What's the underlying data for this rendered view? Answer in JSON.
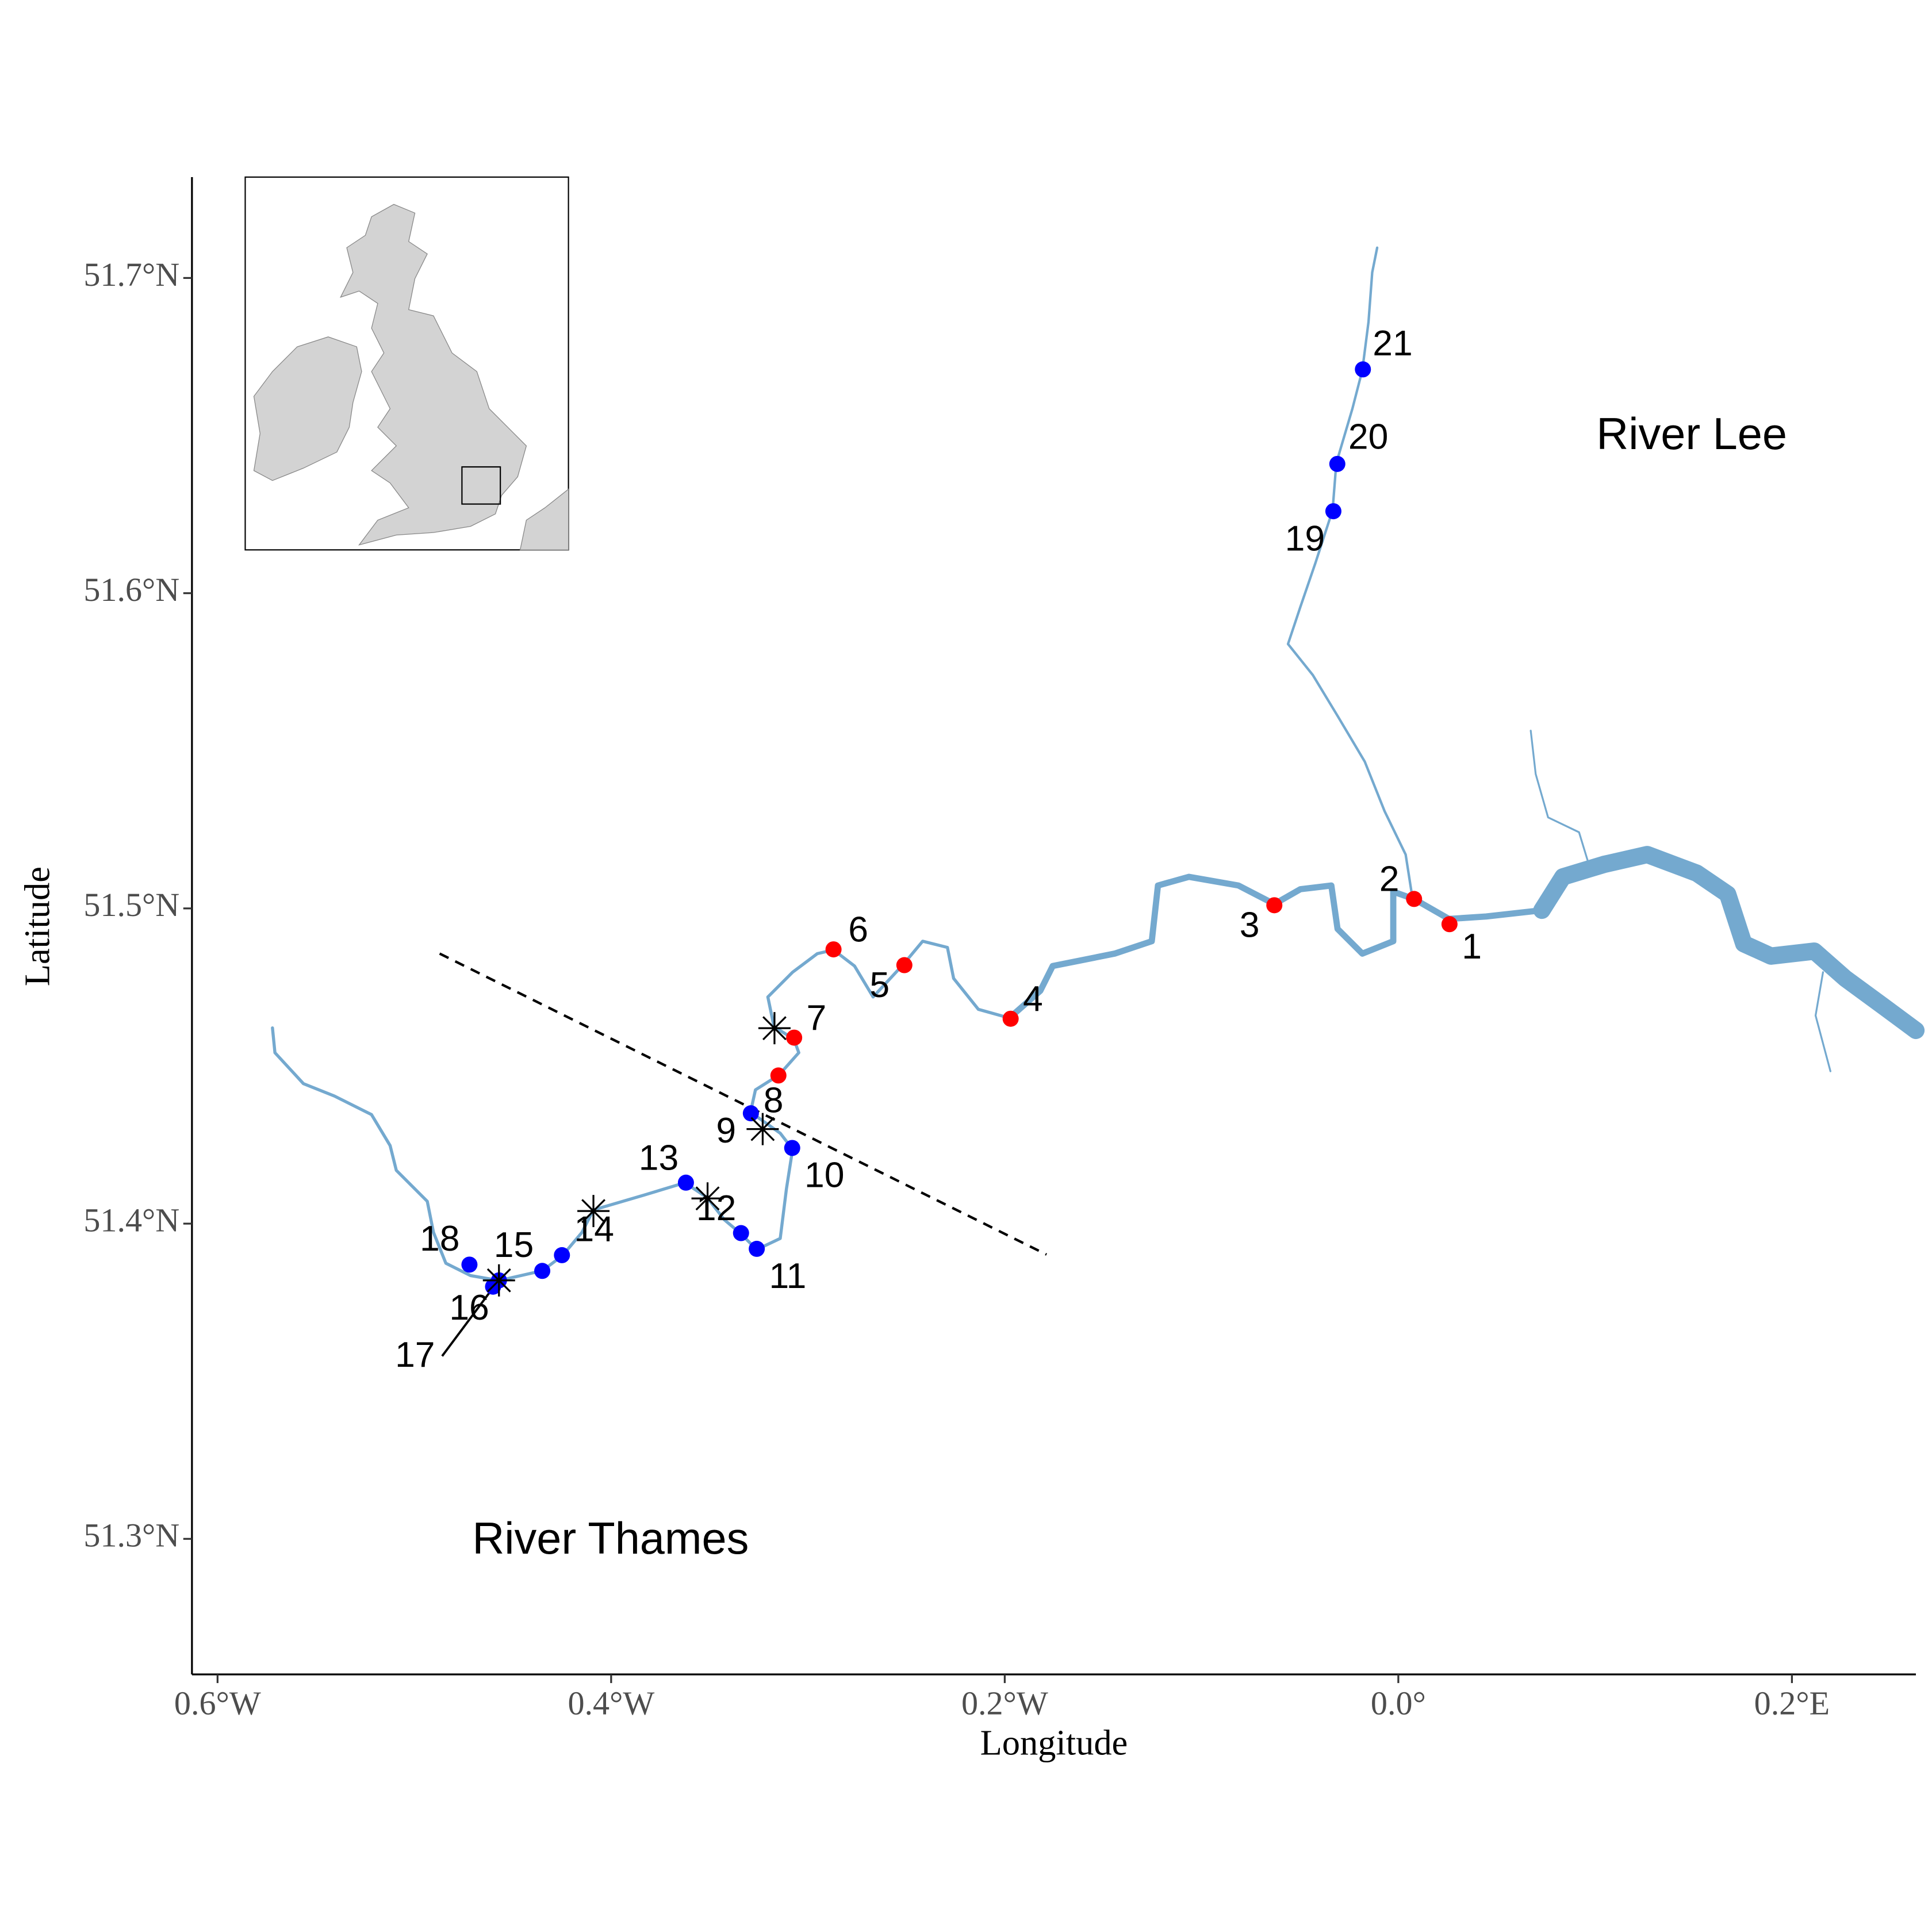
{
  "chart_data": {
    "type": "map",
    "xlabel": "Longitude",
    "ylabel": "Latitude",
    "xlim": [
      -0.613,
      0.263
    ],
    "ylim": [
      51.257,
      51.732
    ],
    "xticks": [
      {
        "value": -0.6,
        "label": "0.6°W"
      },
      {
        "value": -0.4,
        "label": "0.4°W"
      },
      {
        "value": -0.2,
        "label": "0.2°W"
      },
      {
        "value": 0.0,
        "label": "0.0°"
      },
      {
        "value": 0.2,
        "label": "0.2°E"
      }
    ],
    "yticks": [
      {
        "value": 51.3,
        "label": "51.3°N"
      },
      {
        "value": 51.4,
        "label": "51.4°N"
      },
      {
        "value": 51.5,
        "label": "51.5°N"
      },
      {
        "value": 51.6,
        "label": "51.6°N"
      },
      {
        "value": 51.7,
        "label": "51.7°N"
      }
    ],
    "annotations": [
      "River Lee",
      "River Thames"
    ],
    "sites": {
      "labels": [
        "1",
        "2",
        "3",
        "4",
        "5",
        "6",
        "7",
        "8",
        "9",
        "10",
        "11",
        "12",
        "13",
        "14",
        "15",
        "16",
        "17",
        "18",
        "19",
        "20",
        "21"
      ],
      "x": [
        0.026,
        0.008,
        -0.063,
        -0.197,
        -0.251,
        -0.287,
        -0.307,
        -0.315,
        -0.329,
        -0.308,
        -0.326,
        -0.334,
        -0.362,
        -0.425,
        -0.435,
        -0.457,
        -0.46,
        -0.472,
        -0.033,
        -0.031,
        -0.018
      ],
      "y": [
        51.495,
        51.503,
        51.501,
        51.465,
        51.482,
        51.487,
        51.459,
        51.447,
        51.435,
        51.424,
        51.392,
        51.397,
        51.413,
        51.39,
        51.385,
        51.382,
        51.38,
        51.387,
        51.626,
        51.641,
        51.671
      ],
      "colors": [
        "#ff0000",
        "#ff0000",
        "#ff0000",
        "#ff0000",
        "#ff0000",
        "#ff0000",
        "#ff0000",
        "#ff0000",
        "#0000ff",
        "#0000ff",
        "#0000ff",
        "#0000ff",
        "#0000ff",
        "#0000ff",
        "#0000ff",
        "#0000ff",
        "#0000ff",
        "#0000ff",
        "#0000ff",
        "#0000ff",
        "#0000ff"
      ]
    },
    "stars": {
      "x": [
        -0.317,
        -0.323,
        -0.351,
        -0.409,
        -0.457
      ],
      "y": [
        51.462,
        51.43,
        51.408,
        51.404,
        51.382
      ]
    },
    "river_color": "#74a9cf"
  }
}
